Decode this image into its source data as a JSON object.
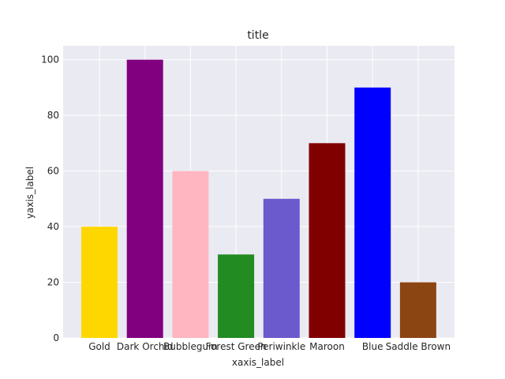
{
  "chart_data": {
    "type": "bar",
    "title": "title",
    "xlabel": "xaxis_label",
    "ylabel": "yaxis_label",
    "categories": [
      "Gold",
      "Dark Orchid",
      "Bubblegum",
      "Forest Green",
      "Periwinkle",
      "Maroon",
      "Blue",
      "Saddle Brown"
    ],
    "values": [
      40,
      100,
      60,
      30,
      50,
      70,
      90,
      20
    ],
    "colors": [
      "#ffd700",
      "#800080",
      "#ffb6c1",
      "#228b22",
      "#6a5acd",
      "#800000",
      "#0000ff",
      "#8b4513"
    ],
    "ylim": [
      0,
      105
    ],
    "yticks": [
      0,
      20,
      40,
      60,
      80,
      100
    ],
    "grid": true,
    "background": "#eaeaf2",
    "grid_color": "#ffffff"
  }
}
